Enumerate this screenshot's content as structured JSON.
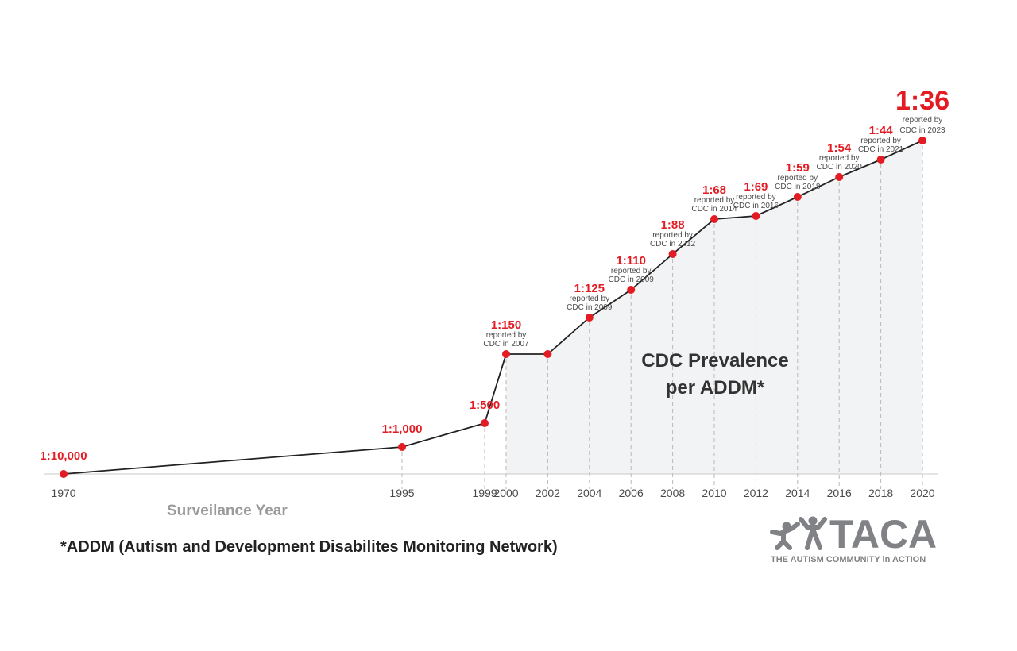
{
  "chart_data": {
    "type": "area",
    "x_label": "Surveilance Year",
    "caption": [
      "CDC Prevalence",
      "per ADDM*"
    ],
    "x_ticks": [
      "1970",
      "1995",
      "1999",
      "2000",
      "2002",
      "2004",
      "2006",
      "2008",
      "2010",
      "2012",
      "2014",
      "2016",
      "2018",
      "2020"
    ],
    "points": [
      {
        "year": 1970,
        "ratio": "1:10,000",
        "denominator": 10000,
        "note": []
      },
      {
        "year": 1995,
        "ratio": "1:1,000",
        "denominator": 1000,
        "note": []
      },
      {
        "year": 1999,
        "ratio": "1:500",
        "denominator": 500,
        "note": []
      },
      {
        "year": 2000,
        "ratio": "1:150",
        "denominator": 150,
        "note": [
          "reported by",
          "CDC in 2007"
        ]
      },
      {
        "year": 2002,
        "ratio": "",
        "denominator": 150,
        "note": []
      },
      {
        "year": 2004,
        "ratio": "1:125",
        "denominator": 125,
        "note": [
          "reported by",
          "CDC in 2009"
        ]
      },
      {
        "year": 2006,
        "ratio": "1:110",
        "denominator": 110,
        "note": [
          "reported by",
          "CDC in 2009"
        ]
      },
      {
        "year": 2008,
        "ratio": "1:88",
        "denominator": 88,
        "note": [
          "reported by",
          "CDC in 2012"
        ]
      },
      {
        "year": 2010,
        "ratio": "1:68",
        "denominator": 68,
        "note": [
          "reported by",
          "CDC in 2014"
        ]
      },
      {
        "year": 2012,
        "ratio": "1:69",
        "denominator": 69,
        "note": [
          "reported by",
          "CDC in 2016"
        ]
      },
      {
        "year": 2014,
        "ratio": "1:59",
        "denominator": 59,
        "note": [
          "reported by",
          "CDC in 2018"
        ]
      },
      {
        "year": 2016,
        "ratio": "1:54",
        "denominator": 54,
        "note": [
          "reported by",
          "CDC in 2020"
        ]
      },
      {
        "year": 2018,
        "ratio": "1:44",
        "denominator": 44,
        "note": [
          "reported by",
          "CDC in 2021"
        ]
      },
      {
        "year": 2020,
        "ratio": "1:36",
        "denominator": 36,
        "note": [
          "reported by",
          "CDC in 2023"
        ]
      }
    ],
    "colors": {
      "accent": "#e31b23",
      "line": "#222222",
      "area": "#f2f3f5",
      "text": "#4a4a4a"
    },
    "grid": "dashed vertical guides"
  },
  "footnote": "*ADDM (Autism and Development Disabilites Monitoring Network)",
  "logo": {
    "name": "TACA",
    "tagline": "THE AUTISM COMMUNITY in ACTION",
    "icon": "two-figures-icon"
  }
}
